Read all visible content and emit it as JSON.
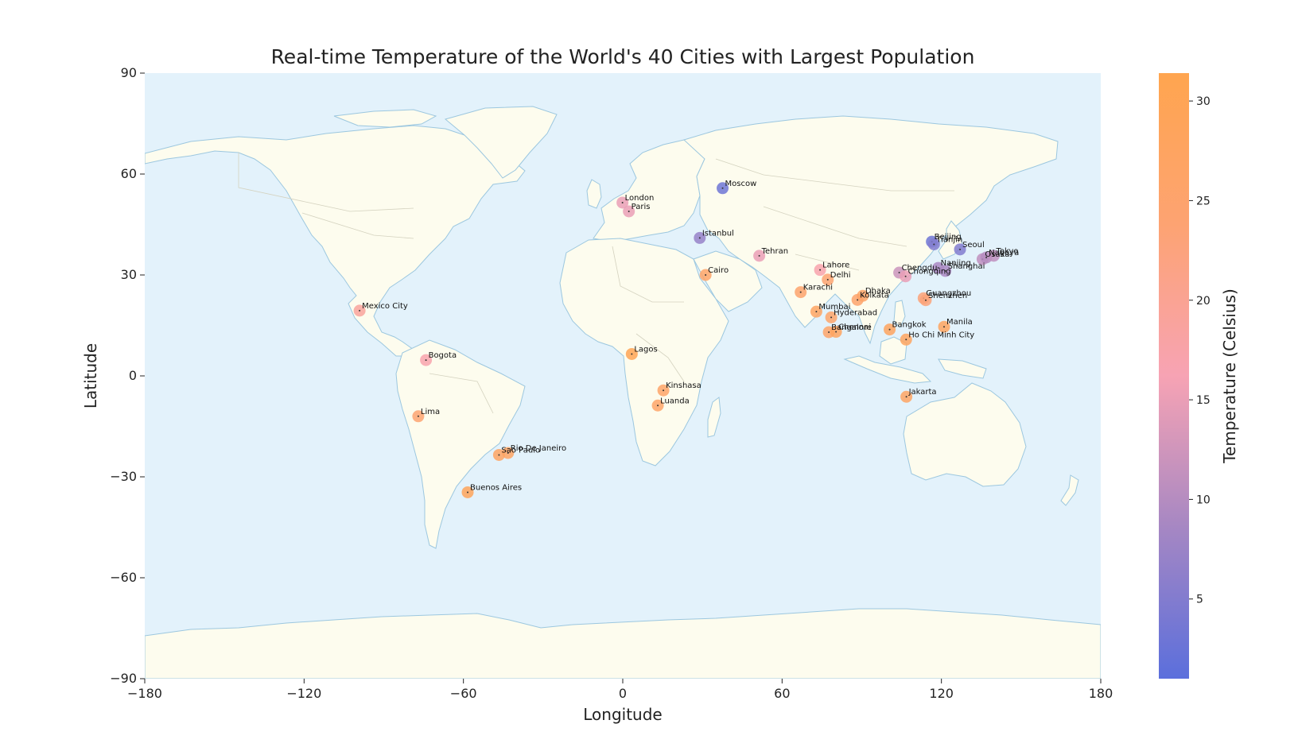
{
  "chart_data": {
    "type": "scatter",
    "title": "Real-time Temperature of the World's 40 Cities with Largest Population",
    "xlabel": "Longitude",
    "ylabel": "Latitude",
    "xlim": [
      -180,
      180
    ],
    "ylim": [
      -90,
      90
    ],
    "xticks": [
      -180,
      -120,
      -60,
      0,
      60,
      120,
      180
    ],
    "yticks": [
      -90,
      -60,
      -30,
      0,
      30,
      60,
      90
    ],
    "xtick_labels": [
      "−180",
      "−120",
      "−60",
      "0",
      "60",
      "120",
      "180"
    ],
    "ytick_labels": [
      "−90",
      "−60",
      "−30",
      "0",
      "30",
      "60",
      "90"
    ],
    "colorbar": {
      "label": "Temperature (Celsius)",
      "range": [
        1,
        31.4
      ],
      "ticks": [
        5,
        10,
        15,
        20,
        25,
        30
      ],
      "tick_labels": [
        "5",
        "10",
        "15",
        "20",
        "25",
        "30"
      ],
      "colors": [
        "#5b6fdc",
        "#a687c3",
        "#f7a3b4",
        "#fda372",
        "#ffa54f"
      ]
    },
    "background": "world-map",
    "colors": {
      "ocean": "#e3f2fb",
      "land": "#fdfcee",
      "border": "#d4d2bf",
      "coast": "#9cc7df"
    },
    "grid": false,
    "points": [
      {
        "name": "Moscow",
        "lon": 37.6,
        "lat": 55.8,
        "temp": 3
      },
      {
        "name": "London",
        "lon": -0.1,
        "lat": 51.5,
        "temp": 15
      },
      {
        "name": "Paris",
        "lon": 2.3,
        "lat": 48.9,
        "temp": 15
      },
      {
        "name": "Istanbul",
        "lon": 29.0,
        "lat": 41.0,
        "temp": 7
      },
      {
        "name": "Tehran",
        "lon": 51.4,
        "lat": 35.7,
        "temp": 15
      },
      {
        "name": "Cairo",
        "lon": 31.2,
        "lat": 30.0,
        "temp": 26
      },
      {
        "name": "Lahore",
        "lon": 74.3,
        "lat": 31.5,
        "temp": 17
      },
      {
        "name": "Delhi",
        "lon": 77.2,
        "lat": 28.6,
        "temp": 24
      },
      {
        "name": "Karachi",
        "lon": 67.0,
        "lat": 24.9,
        "temp": 25
      },
      {
        "name": "Mumbai",
        "lon": 72.9,
        "lat": 19.1,
        "temp": 27
      },
      {
        "name": "Hyderabad",
        "lon": 78.5,
        "lat": 17.4,
        "temp": 26
      },
      {
        "name": "Bangalore",
        "lon": 77.6,
        "lat": 13.0,
        "temp": 26
      },
      {
        "name": "Chennai",
        "lon": 80.3,
        "lat": 13.1,
        "temp": 28
      },
      {
        "name": "Kolkata",
        "lon": 88.4,
        "lat": 22.6,
        "temp": 25
      },
      {
        "name": "Dhaka",
        "lon": 90.4,
        "lat": 23.8,
        "temp": 26
      },
      {
        "name": "Bangkok",
        "lon": 100.5,
        "lat": 13.8,
        "temp": 28
      },
      {
        "name": "Ho Chi Minh City",
        "lon": 106.7,
        "lat": 10.8,
        "temp": 28
      },
      {
        "name": "Jakarta",
        "lon": 106.8,
        "lat": -6.2,
        "temp": 27
      },
      {
        "name": "Manila",
        "lon": 121.0,
        "lat": 14.6,
        "temp": 28
      },
      {
        "name": "Guangzhou",
        "lon": 113.3,
        "lat": 23.1,
        "temp": 23
      },
      {
        "name": "Shenzhen",
        "lon": 114.1,
        "lat": 22.5,
        "temp": 23
      },
      {
        "name": "Chengdu",
        "lon": 104.1,
        "lat": 30.7,
        "temp": 12
      },
      {
        "name": "Chongqing",
        "lon": 106.5,
        "lat": 29.6,
        "temp": 15
      },
      {
        "name": "Nanjing",
        "lon": 118.8,
        "lat": 32.1,
        "temp": 9
      },
      {
        "name": "Shanghai",
        "lon": 121.5,
        "lat": 31.2,
        "temp": 9
      },
      {
        "name": "Beijing",
        "lon": 116.4,
        "lat": 39.9,
        "temp": 3
      },
      {
        "name": "Tianjin",
        "lon": 117.2,
        "lat": 39.1,
        "temp": 5
      },
      {
        "name": "Seoul",
        "lon": 127.0,
        "lat": 37.6,
        "temp": 5
      },
      {
        "name": "Osaka",
        "lon": 135.5,
        "lat": 34.7,
        "temp": 11
      },
      {
        "name": "Nagoya",
        "lon": 136.9,
        "lat": 35.2,
        "temp": 10
      },
      {
        "name": "Tokyo",
        "lon": 139.7,
        "lat": 35.7,
        "temp": 11
      },
      {
        "name": "Mexico City",
        "lon": -99.1,
        "lat": 19.4,
        "temp": 19
      },
      {
        "name": "Bogota",
        "lon": -74.1,
        "lat": 4.7,
        "temp": 17
      },
      {
        "name": "Lima",
        "lon": -77.0,
        "lat": -12.0,
        "temp": 24
      },
      {
        "name": "Rio De Janeiro",
        "lon": -43.2,
        "lat": -22.9,
        "temp": 27
      },
      {
        "name": "Sao Paulo",
        "lon": -46.6,
        "lat": -23.5,
        "temp": 27
      },
      {
        "name": "Buenos Aires",
        "lon": -58.4,
        "lat": -34.6,
        "temp": 29
      },
      {
        "name": "Lagos",
        "lon": 3.4,
        "lat": 6.5,
        "temp": 30
      },
      {
        "name": "Kinshasa",
        "lon": 15.3,
        "lat": -4.3,
        "temp": 26
      },
      {
        "name": "Luanda",
        "lon": 13.2,
        "lat": -8.8,
        "temp": 26
      }
    ]
  }
}
